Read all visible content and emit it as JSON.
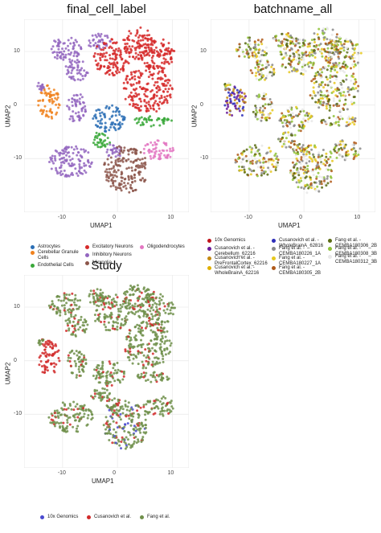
{
  "chart_data": [
    {
      "type": "scatter",
      "title": "final_cell_label",
      "xlabel": "UMAP1",
      "ylabel": "UMAP2",
      "xlim": [
        -17,
        13
      ],
      "ylim": [
        -20,
        16
      ],
      "xticks": [
        -10,
        0,
        10
      ],
      "yticks": [
        -10,
        0,
        10
      ],
      "grid": true,
      "legend_position": "bottom",
      "series": [
        {
          "name": "Astrocytes",
          "color": "#2b6fb5"
        },
        {
          "name": "Cerebellar Granule Cells",
          "color": "#f0821e"
        },
        {
          "name": "Endothelial Cells",
          "color": "#3aa83a"
        },
        {
          "name": "Excitatory Neurons",
          "color": "#d62a2a"
        },
        {
          "name": "Inhibitory Neurons",
          "color": "#9366c0"
        },
        {
          "name": "Microglia",
          "color": "#8c564b"
        },
        {
          "name": "Oligodendrocytes",
          "color": "#e377c2"
        }
      ]
    },
    {
      "type": "scatter",
      "title": "batchname_all",
      "xlabel": "UMAP1",
      "ylabel": "UMAP2",
      "xlim": [
        -17,
        13
      ],
      "ylim": [
        -20,
        16
      ],
      "xticks": [
        -10,
        0,
        10
      ],
      "yticks": [
        -10,
        0,
        10
      ],
      "grid": true,
      "legend_position": "bottom",
      "series": [
        {
          "name": "10x Genomics",
          "color": "#c0131b"
        },
        {
          "name": "Cusanovich et al. - Cerebellum_62216",
          "color": "#6a1b9a"
        },
        {
          "name": "Cusanovich et al. - PreFrontalCortex_62216",
          "color": "#c48a12"
        },
        {
          "name": "Cusanovich et al. - WholeBrainA_62216",
          "color": "#e0b000"
        },
        {
          "name": "Cusanovich et al. - WholeBrainA_62816",
          "color": "#2d2db8"
        },
        {
          "name": "Fang et al. - CEMBA180226_1A",
          "color": "#8a8a8a"
        },
        {
          "name": "Fang et al. - CEMBA180227_1A",
          "color": "#e6c81e"
        },
        {
          "name": "Fang et al. - CEMBA180305_2B",
          "color": "#b05a1a"
        },
        {
          "name": "Fang et al. - CEMBA180306_2B",
          "color": "#5a6b14"
        },
        {
          "name": "Fang et al. - CEMBA180308_3B",
          "color": "#8fc23a"
        },
        {
          "name": "Fang et al. - CEMBA180312_3B",
          "color": "#e8e8e8"
        }
      ]
    },
    {
      "type": "scatter",
      "title": "Study",
      "xlabel": "UMAP1",
      "ylabel": "UMAP2",
      "xlim": [
        -17,
        13
      ],
      "ylim": [
        -20,
        16
      ],
      "xticks": [
        -10,
        0,
        10
      ],
      "yticks": [
        -10,
        0,
        10
      ],
      "grid": true,
      "legend_position": "bottom",
      "series": [
        {
          "name": "10x Genomics",
          "color": "#4a4ad0"
        },
        {
          "name": "Cusanovich et al.",
          "color": "#d12a2a"
        },
        {
          "name": "Fang et al.",
          "color": "#6f8f4a"
        }
      ]
    }
  ],
  "tick_labels": [
    "-10",
    "0",
    "10"
  ]
}
